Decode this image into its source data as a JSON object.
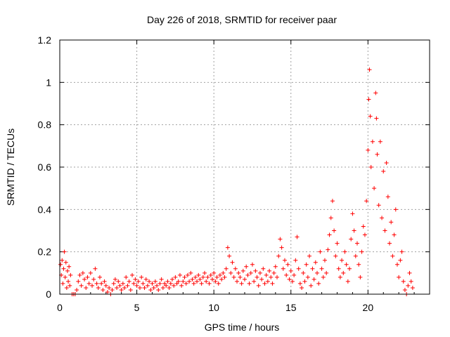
{
  "chart_data": {
    "type": "scatter",
    "title": "Day 226 of 2018, SRMTID for receiver paar",
    "xlabel": "GPS time / hours",
    "ylabel": "SRMTID / TECUs",
    "xlim": [
      0,
      24
    ],
    "ylim": [
      0,
      1.2
    ],
    "x_ticks": [
      0,
      5,
      10,
      15,
      20
    ],
    "x_tick_labels": [
      "0",
      "5",
      "10",
      "15",
      "20"
    ],
    "y_ticks": [
      0,
      0.2,
      0.4,
      0.6,
      0.8,
      1.0,
      1.2
    ],
    "y_tick_labels": [
      "0",
      "0.2",
      "0.4",
      "0.6",
      "0.8",
      "1",
      "1.2"
    ],
    "grid": true,
    "legend": "none",
    "marker": "+",
    "series": [
      {
        "name": "SRMTID",
        "color": "#ff0000",
        "points": [
          [
            0.05,
            0.14
          ],
          [
            0.1,
            0.09
          ],
          [
            0.15,
            0.16
          ],
          [
            0.2,
            0.05
          ],
          [
            0.25,
            0.12
          ],
          [
            0.3,
            0.2
          ],
          [
            0.35,
            0.08
          ],
          [
            0.4,
            0.15
          ],
          [
            0.45,
            0.03
          ],
          [
            0.5,
            0.11
          ],
          [
            0.55,
            0.06
          ],
          [
            0.6,
            0.13
          ],
          [
            0.65,
            0.04
          ],
          [
            0.7,
            0.09
          ],
          [
            0.8,
            0.0
          ],
          [
            0.9,
            0.0
          ],
          [
            1.0,
            0.0
          ],
          [
            1.1,
            0.02
          ],
          [
            1.2,
            0.06
          ],
          [
            1.3,
            0.09
          ],
          [
            1.4,
            0.04
          ],
          [
            1.5,
            0.1
          ],
          [
            1.6,
            0.07
          ],
          [
            1.7,
            0.03
          ],
          [
            1.8,
            0.08
          ],
          [
            1.9,
            0.05
          ],
          [
            2.0,
            0.1
          ],
          [
            2.1,
            0.04
          ],
          [
            2.2,
            0.07
          ],
          [
            2.3,
            0.12
          ],
          [
            2.4,
            0.05
          ],
          [
            2.5,
            0.03
          ],
          [
            2.6,
            0.08
          ],
          [
            2.7,
            0.05
          ],
          [
            2.8,
            0.02
          ],
          [
            2.9,
            0.06
          ],
          [
            3.0,
            0.04
          ],
          [
            3.1,
            0.01
          ],
          [
            3.2,
            0.03
          ],
          [
            3.3,
            0.0
          ],
          [
            3.4,
            0.02
          ],
          [
            3.5,
            0.05
          ],
          [
            3.6,
            0.07
          ],
          [
            3.7,
            0.03
          ],
          [
            3.8,
            0.06
          ],
          [
            3.9,
            0.04
          ],
          [
            4.0,
            0.02
          ],
          [
            4.1,
            0.05
          ],
          [
            4.2,
            0.03
          ],
          [
            4.3,
            0.08
          ],
          [
            4.4,
            0.04
          ],
          [
            4.5,
            0.06
          ],
          [
            4.6,
            0.02
          ],
          [
            4.7,
            0.09
          ],
          [
            4.8,
            0.05
          ],
          [
            4.9,
            0.07
          ],
          [
            5.0,
            0.04
          ],
          [
            5.1,
            0.06
          ],
          [
            5.2,
            0.03
          ],
          [
            5.3,
            0.08
          ],
          [
            5.4,
            0.05
          ],
          [
            5.5,
            0.03
          ],
          [
            5.6,
            0.07
          ],
          [
            5.7,
            0.04
          ],
          [
            5.8,
            0.06
          ],
          [
            5.9,
            0.02
          ],
          [
            6.0,
            0.05
          ],
          [
            6.1,
            0.03
          ],
          [
            6.2,
            0.06
          ],
          [
            6.3,
            0.04
          ],
          [
            6.4,
            0.02
          ],
          [
            6.5,
            0.05
          ],
          [
            6.6,
            0.07
          ],
          [
            6.7,
            0.03
          ],
          [
            6.8,
            0.05
          ],
          [
            6.9,
            0.04
          ],
          [
            7.0,
            0.06
          ],
          [
            7.1,
            0.03
          ],
          [
            7.2,
            0.05
          ],
          [
            7.3,
            0.07
          ],
          [
            7.4,
            0.04
          ],
          [
            7.5,
            0.08
          ],
          [
            7.6,
            0.05
          ],
          [
            7.7,
            0.06
          ],
          [
            7.8,
            0.09
          ],
          [
            7.9,
            0.04
          ],
          [
            8.0,
            0.06
          ],
          [
            8.1,
            0.08
          ],
          [
            8.2,
            0.05
          ],
          [
            8.3,
            0.09
          ],
          [
            8.4,
            0.06
          ],
          [
            8.5,
            0.1
          ],
          [
            8.6,
            0.07
          ],
          [
            8.7,
            0.05
          ],
          [
            8.8,
            0.08
          ],
          [
            8.9,
            0.06
          ],
          [
            9.0,
            0.09
          ],
          [
            9.1,
            0.07
          ],
          [
            9.2,
            0.05
          ],
          [
            9.3,
            0.08
          ],
          [
            9.4,
            0.1
          ],
          [
            9.5,
            0.06
          ],
          [
            9.6,
            0.08
          ],
          [
            9.7,
            0.05
          ],
          [
            9.8,
            0.09
          ],
          [
            9.9,
            0.07
          ],
          [
            10.0,
            0.1
          ],
          [
            10.1,
            0.06
          ],
          [
            10.2,
            0.08
          ],
          [
            10.3,
            0.05
          ],
          [
            10.4,
            0.09
          ],
          [
            10.5,
            0.07
          ],
          [
            10.6,
            0.1
          ],
          [
            10.7,
            0.08
          ],
          [
            10.8,
            0.12
          ],
          [
            10.9,
            0.22
          ],
          [
            11.0,
            0.18
          ],
          [
            11.1,
            0.1
          ],
          [
            11.2,
            0.15
          ],
          [
            11.3,
            0.08
          ],
          [
            11.4,
            0.12
          ],
          [
            11.5,
            0.06
          ],
          [
            11.6,
            0.1
          ],
          [
            11.7,
            0.08
          ],
          [
            11.8,
            0.05
          ],
          [
            11.9,
            0.11
          ],
          [
            12.0,
            0.07
          ],
          [
            12.1,
            0.13
          ],
          [
            12.2,
            0.09
          ],
          [
            12.3,
            0.05
          ],
          [
            12.4,
            0.1
          ],
          [
            12.5,
            0.14
          ],
          [
            12.6,
            0.06
          ],
          [
            12.7,
            0.11
          ],
          [
            12.8,
            0.08
          ],
          [
            12.9,
            0.04
          ],
          [
            13.0,
            0.1
          ],
          [
            13.1,
            0.07
          ],
          [
            13.2,
            0.12
          ],
          [
            13.3,
            0.05
          ],
          [
            13.4,
            0.09
          ],
          [
            13.5,
            0.06
          ],
          [
            13.6,
            0.11
          ],
          [
            13.7,
            0.08
          ],
          [
            13.8,
            0.05
          ],
          [
            13.9,
            0.1
          ],
          [
            14.0,
            0.13
          ],
          [
            14.1,
            0.08
          ],
          [
            14.2,
            0.18
          ],
          [
            14.3,
            0.26
          ],
          [
            14.4,
            0.22
          ],
          [
            14.5,
            0.12
          ],
          [
            14.6,
            0.16
          ],
          [
            14.7,
            0.09
          ],
          [
            14.8,
            0.14
          ],
          [
            14.9,
            0.07
          ],
          [
            15.0,
            0.11
          ],
          [
            15.1,
            0.06
          ],
          [
            15.2,
            0.09
          ],
          [
            15.3,
            0.16
          ],
          [
            15.4,
            0.27
          ],
          [
            15.5,
            0.12
          ],
          [
            15.6,
            0.05
          ],
          [
            15.7,
            0.03
          ],
          [
            15.8,
            0.1
          ],
          [
            15.9,
            0.06
          ],
          [
            16.0,
            0.14
          ],
          [
            16.1,
            0.08
          ],
          [
            16.2,
            0.18
          ],
          [
            16.3,
            0.04
          ],
          [
            16.4,
            0.12
          ],
          [
            16.5,
            0.07
          ],
          [
            16.6,
            0.15
          ],
          [
            16.7,
            0.1
          ],
          [
            16.8,
            0.05
          ],
          [
            16.9,
            0.2
          ],
          [
            17.0,
            0.12
          ],
          [
            17.1,
            0.08
          ],
          [
            17.2,
            0.16
          ],
          [
            17.3,
            0.1
          ],
          [
            17.4,
            0.21
          ],
          [
            17.5,
            0.28
          ],
          [
            17.6,
            0.36
          ],
          [
            17.7,
            0.44
          ],
          [
            17.8,
            0.3
          ],
          [
            17.9,
            0.18
          ],
          [
            18.0,
            0.24
          ],
          [
            18.1,
            0.12
          ],
          [
            18.2,
            0.08
          ],
          [
            18.3,
            0.16
          ],
          [
            18.4,
            0.1
          ],
          [
            18.5,
            0.2
          ],
          [
            18.6,
            0.14
          ],
          [
            18.7,
            0.06
          ],
          [
            18.8,
            0.12
          ],
          [
            18.9,
            0.26
          ],
          [
            19.0,
            0.38
          ],
          [
            19.1,
            0.3
          ],
          [
            19.2,
            0.18
          ],
          [
            19.3,
            0.24
          ],
          [
            19.4,
            0.14
          ],
          [
            19.5,
            0.08
          ],
          [
            19.6,
            0.2
          ],
          [
            19.7,
            0.32
          ],
          [
            19.8,
            0.28
          ],
          [
            19.9,
            0.44
          ],
          [
            20.0,
            0.68
          ],
          [
            20.05,
            0.92
          ],
          [
            20.1,
            1.06
          ],
          [
            20.15,
            0.84
          ],
          [
            20.2,
            0.6
          ],
          [
            20.3,
            0.72
          ],
          [
            20.4,
            0.5
          ],
          [
            20.5,
            0.95
          ],
          [
            20.55,
            0.83
          ],
          [
            20.6,
            0.66
          ],
          [
            20.7,
            0.42
          ],
          [
            20.8,
            0.72
          ],
          [
            20.9,
            0.36
          ],
          [
            21.0,
            0.58
          ],
          [
            21.1,
            0.3
          ],
          [
            21.2,
            0.62
          ],
          [
            21.3,
            0.46
          ],
          [
            21.4,
            0.24
          ],
          [
            21.5,
            0.34
          ],
          [
            21.6,
            0.18
          ],
          [
            21.7,
            0.28
          ],
          [
            21.8,
            0.4
          ],
          [
            21.9,
            0.14
          ],
          [
            22.0,
            0.08
          ],
          [
            22.1,
            0.16
          ],
          [
            22.2,
            0.2
          ],
          [
            22.3,
            0.06
          ],
          [
            22.4,
            0.02
          ],
          [
            22.5,
            0.0
          ],
          [
            22.6,
            0.04
          ],
          [
            22.7,
            0.1
          ],
          [
            22.8,
            0.06
          ],
          [
            22.9,
            0.03
          ]
        ]
      }
    ]
  }
}
